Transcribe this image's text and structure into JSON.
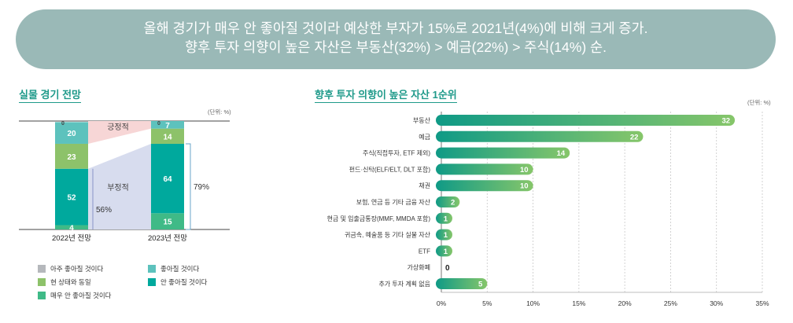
{
  "banner": {
    "line1": "올해 경기가 매우 안 좋아질 것이라 예상한 부자가 15%로 2021년(4%)에 비해 크게 증가.",
    "line2": "향후 투자 의향이 높은 자산은 부동산(32%) > 예금(22%) > 주식(14%) 순."
  },
  "left_chart": {
    "title": "실물 경기 전망",
    "unit": "(단위: %)",
    "positive_label": "긍정적",
    "negative_label": "부정적",
    "neg_2022": "56%",
    "neg_2023": "79%"
  },
  "right_chart": {
    "title": "향후 투자 의향이 높은 자산 1순위",
    "unit": "(단위: %)"
  },
  "legend": [
    {
      "label": "아주 좋아질 것이다",
      "color": "#b5b8bc"
    },
    {
      "label": "좋아질 것이다",
      "color": "#5dc2bd"
    },
    {
      "label": "현 상태와 동일",
      "color": "#8dc26a"
    },
    {
      "label": "안 좋아질 것이다",
      "color": "#00a99d"
    },
    {
      "label": "매우 안 좋아질 것이다",
      "color": "#3fba87"
    }
  ],
  "chart_data": [
    {
      "type": "bar",
      "stacked": true,
      "categories": [
        "2022년 전망",
        "2023년 전망"
      ],
      "series": [
        {
          "name": "매우 안 좋아질 것이다",
          "values": [
            4,
            15
          ],
          "color": "#3fba87"
        },
        {
          "name": "안 좋아질 것이다",
          "values": [
            52,
            64
          ],
          "color": "#00a99d"
        },
        {
          "name": "현 상태와 동일",
          "values": [
            23,
            14
          ],
          "color": "#8dc26a"
        },
        {
          "name": "좋아질 것이다",
          "values": [
            20,
            7
          ],
          "color": "#5dc2bd"
        },
        {
          "name": "아주 좋아질 것이다",
          "values": [
            0,
            0
          ],
          "color": "#b5b8bc"
        }
      ]
    },
    {
      "type": "bar",
      "orientation": "horizontal",
      "categories": [
        "부동산",
        "예금",
        "주식(직접투자, ETF 제외)",
        "펀드·신탁(ELF/ELT, DLT 포함)",
        "채권",
        "보험, 연금 등 기타 금융 자산",
        "현금 및 입출금통장(MMF, MMDA 포함)",
        "귀금속, 예술품 등 기타 실물 자산",
        "ETF",
        "가상화폐",
        "추가 투자 계획 없음"
      ],
      "values": [
        32,
        22,
        14,
        10,
        10,
        2,
        1,
        1,
        1,
        0,
        5
      ],
      "xlim": [
        0,
        35
      ],
      "xticks": [
        "0%",
        "5%",
        "10%",
        "15%",
        "20%",
        "25%",
        "30%",
        "35%"
      ],
      "grid": true
    }
  ]
}
